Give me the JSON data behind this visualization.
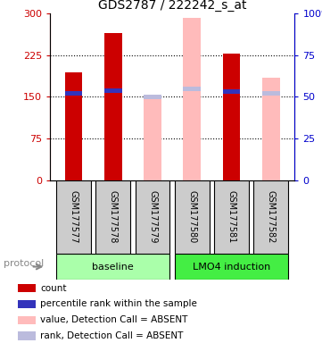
{
  "title": "GDS2787 / 222242_s_at",
  "samples": [
    "GSM177577",
    "GSM177578",
    "GSM177579",
    "GSM177580",
    "GSM177581",
    "GSM177582"
  ],
  "left_ylim": [
    0,
    300
  ],
  "right_ylim": [
    0,
    100
  ],
  "left_ticks": [
    0,
    75,
    150,
    225,
    300
  ],
  "right_ticks": [
    0,
    25,
    50,
    75,
    100
  ],
  "left_tick_labels": [
    "0",
    "75",
    "150",
    "225",
    "300"
  ],
  "right_tick_labels": [
    "0",
    "25",
    "50",
    "75",
    "100%"
  ],
  "ytick_dotted": [
    75,
    150,
    225
  ],
  "count_values": [
    195,
    265,
    null,
    null,
    228,
    null
  ],
  "rank_values": [
    52,
    54,
    null,
    null,
    53,
    null
  ],
  "absent_value_values": [
    null,
    null,
    150,
    293,
    null,
    185
  ],
  "absent_rank_values": [
    null,
    null,
    50,
    55,
    null,
    52
  ],
  "count_color": "#cc0000",
  "rank_color": "#3333bb",
  "absent_value_color": "#ffbbbb",
  "absent_rank_color": "#bbbbdd",
  "protocol_groups": [
    {
      "label": "baseline",
      "samples": [
        0,
        1,
        2
      ],
      "color": "#aaffaa"
    },
    {
      "label": "LMO4 induction",
      "samples": [
        3,
        4,
        5
      ],
      "color": "#44ee44"
    }
  ],
  "left_axis_color": "#cc0000",
  "right_axis_color": "#0000cc",
  "legend_items": [
    {
      "label": "count",
      "color": "#cc0000"
    },
    {
      "label": "percentile rank within the sample",
      "color": "#3333bb"
    },
    {
      "label": "value, Detection Call = ABSENT",
      "color": "#ffbbbb"
    },
    {
      "label": "rank, Detection Call = ABSENT",
      "color": "#bbbbdd"
    }
  ],
  "protocol_label": "protocol",
  "figsize": [
    3.61,
    3.84
  ],
  "dpi": 100
}
